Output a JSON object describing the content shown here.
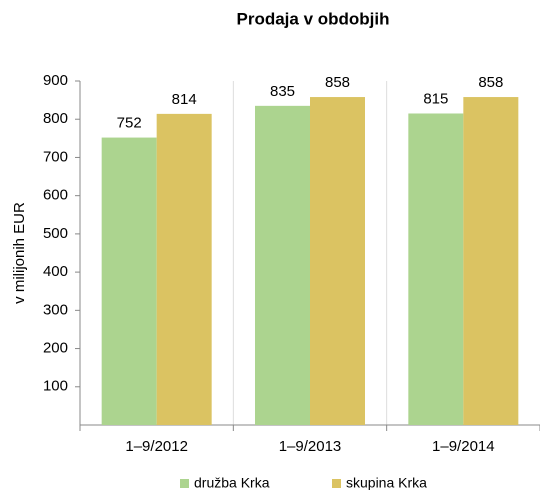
{
  "chart_data": {
    "type": "bar",
    "title": "Prodaja v obdobjih",
    "y_label": "v milijonih EUR",
    "categories": [
      "1–9/2012",
      "1–9/2013",
      "1–9/2014"
    ],
    "series": [
      {
        "name": "družba Krka",
        "color": "#acd48f",
        "values": [
          752,
          835,
          815
        ]
      },
      {
        "name": "skupina Krka",
        "color": "#dbc362",
        "values": [
          814,
          858,
          858
        ]
      }
    ],
    "ylim": [
      0,
      900
    ],
    "yticks": [
      100,
      200,
      300,
      400,
      500,
      600,
      700,
      800,
      900
    ],
    "legend": "bottom"
  }
}
